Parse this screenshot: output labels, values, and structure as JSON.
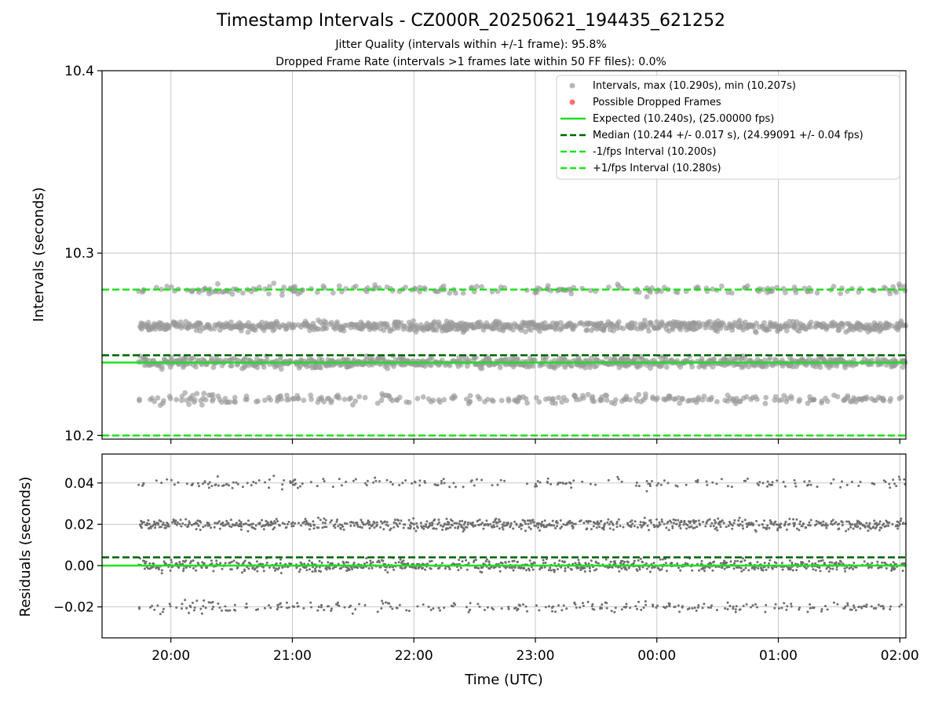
{
  "title": "Timestamp Intervals - CZ000R_20250621_194435_621252",
  "subtitle_lines": [
    "Jitter Quality (intervals within +/-1 frame): 95.8%",
    "Dropped Frame Rate (intervals >1 frames late within 50 FF files): 0.0%"
  ],
  "colors": {
    "intervals": "#999999",
    "dropped": "#ff4d4d",
    "expected": "#1ee01e",
    "median": "#006400",
    "fps_bounds": "#1ee01e",
    "residuals": "#6f6f6f"
  },
  "chart_data": [
    {
      "type": "scatter",
      "panel": "intervals",
      "ylabel": "Intervals (seconds)",
      "ylim": [
        10.198,
        10.4
      ],
      "yticks": [
        10.2,
        10.3,
        10.4
      ],
      "ytick_labels": [
        "10.2",
        "10.3",
        "10.4"
      ],
      "grid": true,
      "legend_position": "top-right",
      "x_range": [
        "19:44",
        "02:03"
      ],
      "clusters_y": [
        10.22,
        10.24,
        10.26,
        10.28
      ],
      "cluster_weights": [
        0.14,
        0.42,
        0.36,
        0.08
      ],
      "point_count": 2200,
      "max": 10.29,
      "min": 10.207,
      "reference_lines": [
        {
          "name": "Expected (10.240s), (25.00000 fps)",
          "y": 10.24,
          "style": "solid"
        },
        {
          "name": "Median (10.244 +/- 0.017 s), (24.99091 +/- 0.04 fps)",
          "y": 10.244,
          "style": "dashed"
        },
        {
          "name": "-1/fps Interval (10.200s)",
          "y": 10.2,
          "style": "dashed"
        },
        {
          "name": "+1/fps Interval (10.280s)",
          "y": 10.28,
          "style": "dashed"
        }
      ],
      "series": [
        {
          "name": "Intervals, max (10.290s), min (10.207s)",
          "marker": "circle"
        },
        {
          "name": "Possible Dropped Frames",
          "marker": "circle",
          "values": []
        }
      ]
    },
    {
      "type": "scatter",
      "panel": "residuals",
      "ylabel": "Residuals (seconds)",
      "xlabel": "Time (UTC)",
      "ylim": [
        -0.035,
        0.054
      ],
      "yticks": [
        -0.02,
        0.0,
        0.02,
        0.04
      ],
      "ytick_labels": [
        "−0.02",
        "0.00",
        "0.02",
        "0.04"
      ],
      "xlim": [
        "19:26",
        "02:03"
      ],
      "xticks": [
        "20:00",
        "21:00",
        "22:00",
        "23:00",
        "00:00",
        "01:00",
        "02:00"
      ],
      "grid": true,
      "clusters_y": [
        -0.02,
        0.0,
        0.02,
        0.04
      ],
      "reference_lines": [
        {
          "y": 0.0,
          "style": "solid"
        },
        {
          "y": 0.004,
          "style": "dashed"
        }
      ]
    }
  ]
}
